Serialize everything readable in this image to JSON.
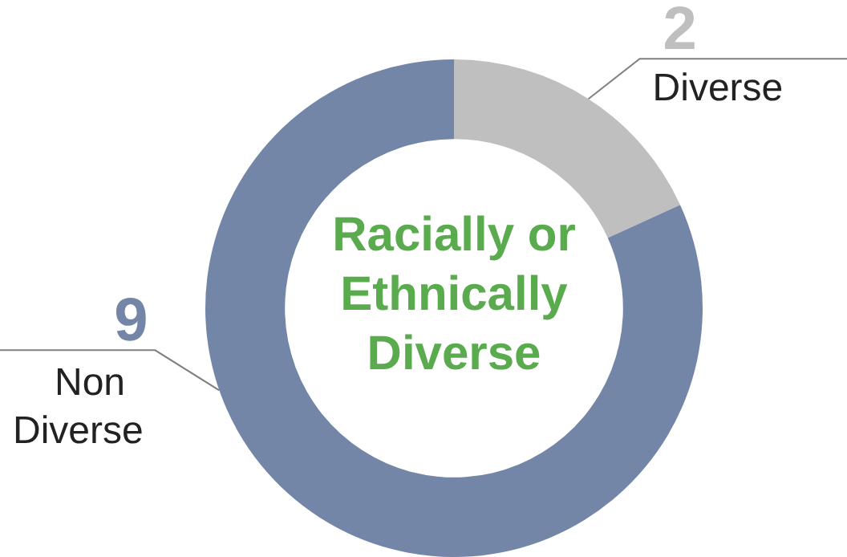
{
  "chart_data": {
    "type": "donut",
    "title": "Racially or Ethnically Diverse",
    "categories": [
      "Diverse",
      "Non Diverse"
    ],
    "values": [
      2,
      9
    ],
    "colors": [
      "#bfbfbf",
      "#7386a8"
    ],
    "data_labels": true,
    "legend": false
  }
}
